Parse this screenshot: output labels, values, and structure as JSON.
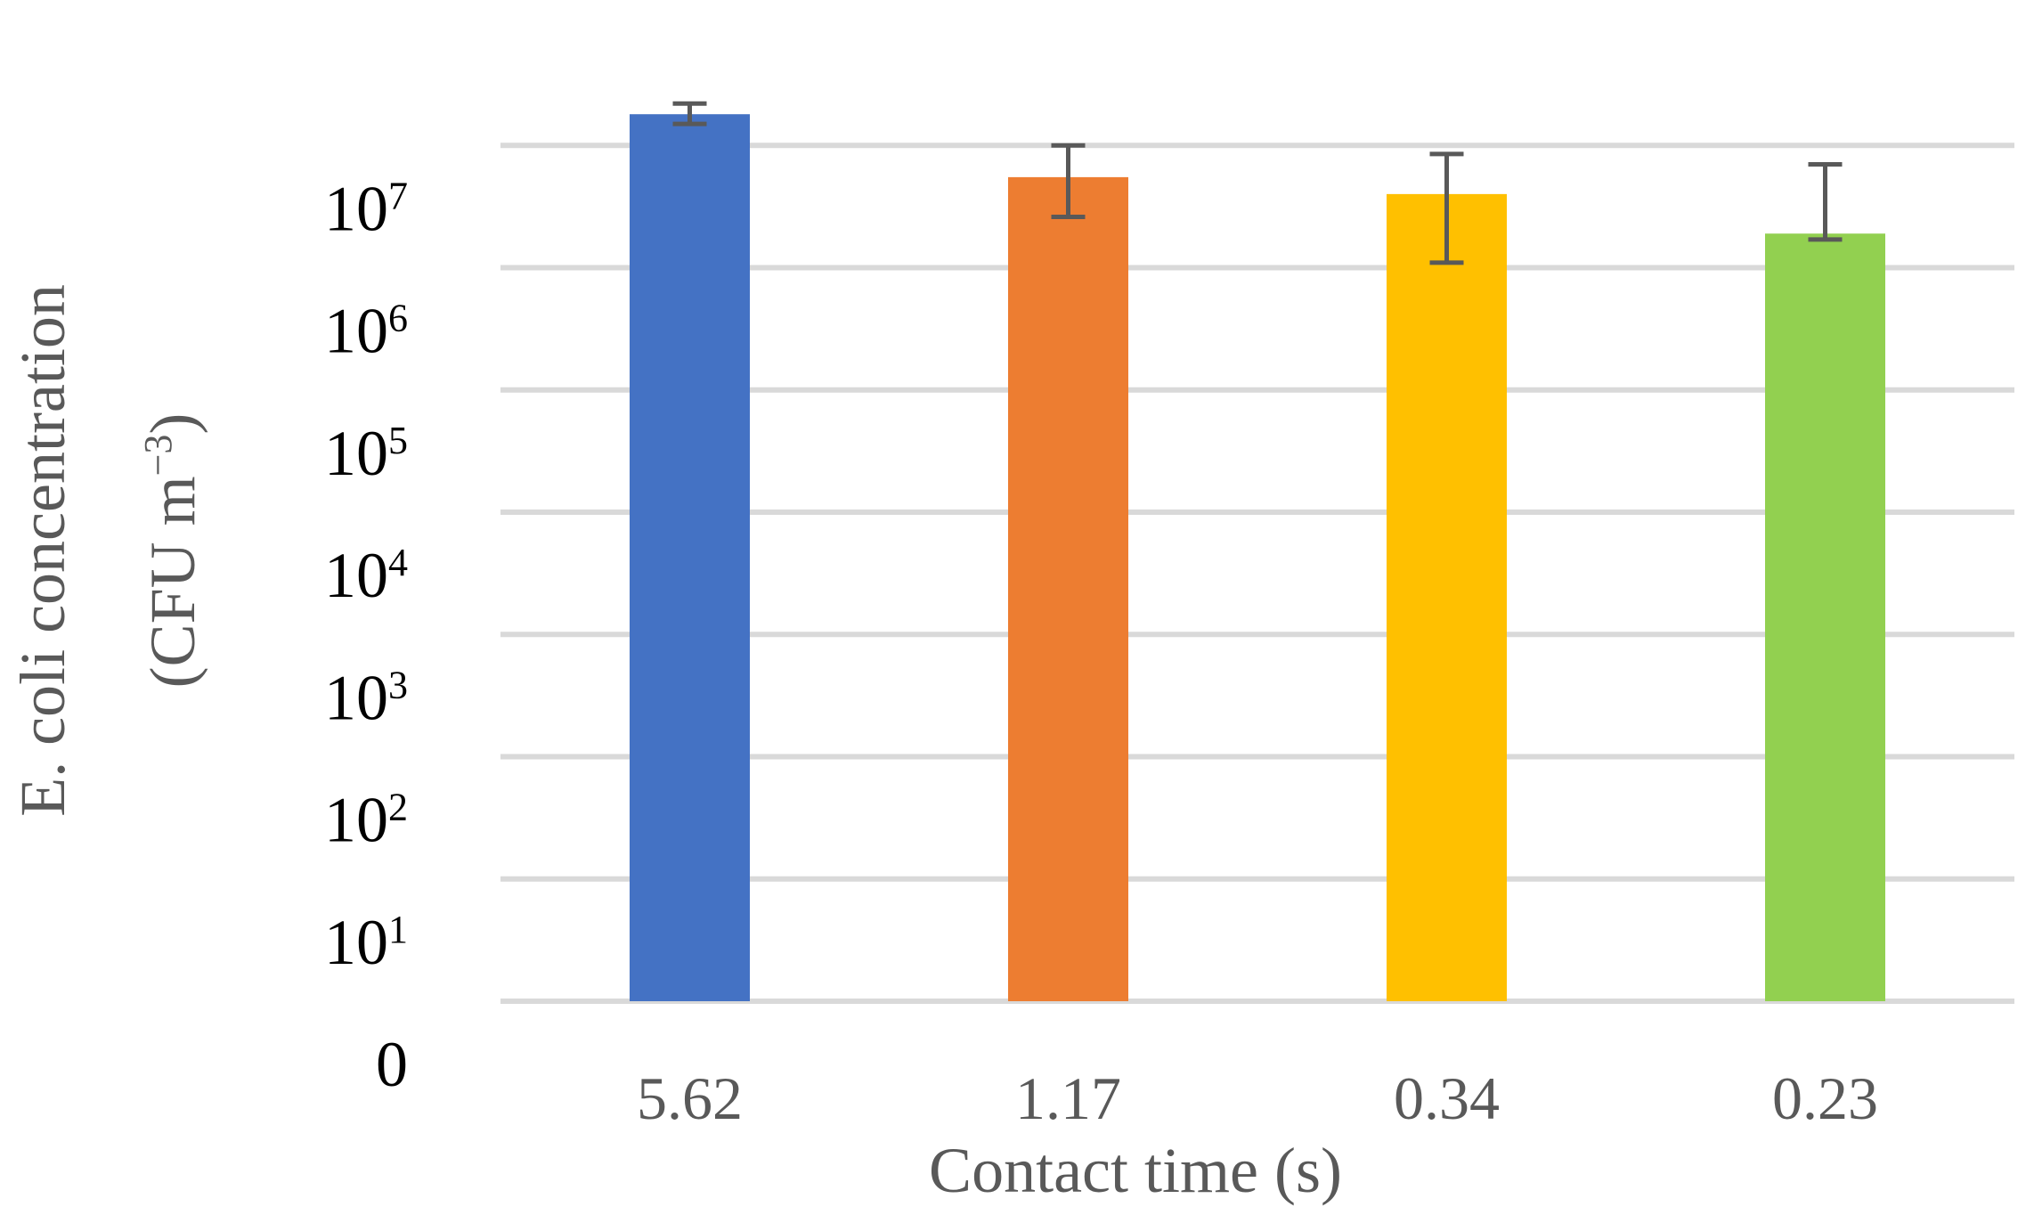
{
  "chart_data": {
    "type": "bar",
    "categories": [
      "5.62",
      "1.17",
      "0.34",
      "0.23"
    ],
    "values": [
      18000000,
      5500000,
      4000000,
      1900000
    ],
    "error_low": [
      15000000,
      2600000,
      1100000,
      1700000
    ],
    "error_high": [
      22000000,
      10000000,
      8500000,
      7000000
    ],
    "colors": [
      "#4472C4",
      "#ED7D31",
      "#FFC000",
      "#92D050"
    ],
    "error_bar_color": "#595959",
    "grid_color": "#D9D9D9",
    "scale": "log",
    "ylim": [
      1,
      100000000
    ],
    "y_ticks": [
      {
        "value": 1,
        "base": "0",
        "exp": ""
      },
      {
        "value": 10,
        "base": "10",
        "exp": "1"
      },
      {
        "value": 100,
        "base": "10",
        "exp": "2"
      },
      {
        "value": 1000,
        "base": "10",
        "exp": "3"
      },
      {
        "value": 10000,
        "base": "10",
        "exp": "4"
      },
      {
        "value": 100000,
        "base": "10",
        "exp": "5"
      },
      {
        "value": 1000000,
        "base": "10",
        "exp": "6"
      },
      {
        "value": 10000000,
        "base": "10",
        "exp": "7"
      }
    ],
    "grid": true,
    "xlabel": "Contact time (s)",
    "ylabel_line1": "E. coli concentration",
    "ylabel_line2_prefix": "(CFU m",
    "ylabel_line2_exp": "−3",
    "ylabel_line2_suffix": ")"
  }
}
